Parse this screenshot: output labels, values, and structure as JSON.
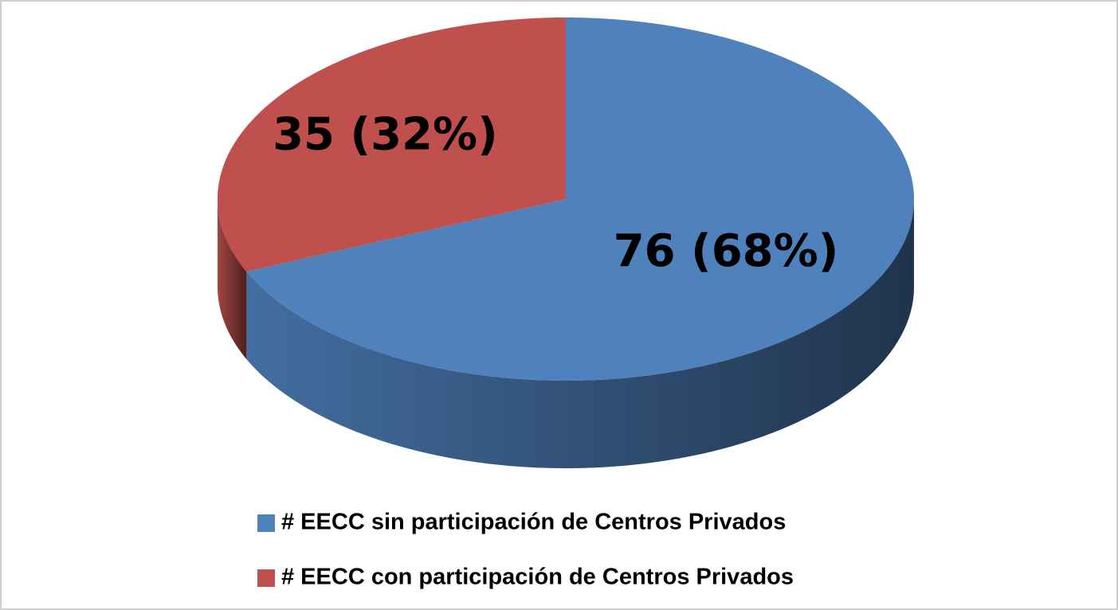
{
  "chart_data": {
    "type": "pie",
    "categories": [
      "# EECC sin participación de Centros Privados",
      "# EECC con participación de Centros Privados"
    ],
    "values": [
      76,
      35
    ],
    "value_labels": [
      "76 (68%)",
      "35 (32%)"
    ],
    "colors": [
      "#4f81bd",
      "#c0504d"
    ]
  }
}
